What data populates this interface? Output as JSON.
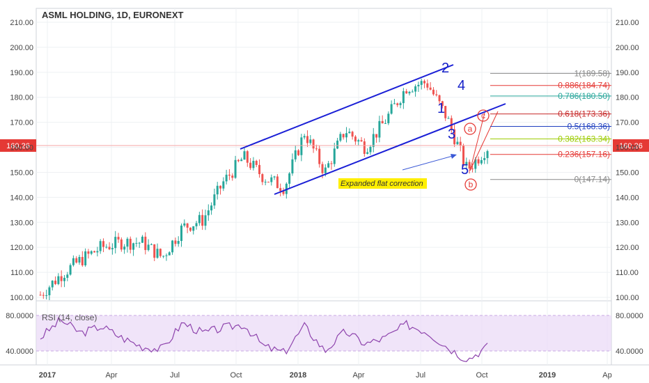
{
  "chart_data": [
    {
      "type": "candlestick",
      "title": "ASML HOLDING, 1D, EURONEXT",
      "x_ticks": [
        "2017",
        "Apr",
        "Jul",
        "Oct",
        "2018",
        "Apr",
        "Jul",
        "Oct",
        "2019",
        "Ap"
      ],
      "y_ticks": [
        "100.00",
        "110.00",
        "120.00",
        "130.00",
        "140.00",
        "150.00",
        "160.00",
        "170.00",
        "180.00",
        "190.00",
        "200.00",
        "210.00"
      ],
      "ylim": [
        98,
        215
      ],
      "last_price": "160.26",
      "series": [
        {
          "x": [
            "2016-12",
            "2017-01",
            "2017-02",
            "2017-03",
            "2017-04",
            "2017-05",
            "2017-06",
            "2017-07",
            "2017-08",
            "2017-09",
            "2017-10",
            "2017-11",
            "2017-12",
            "2018-01",
            "2018-02",
            "2018-03",
            "2018-04",
            "2018-05",
            "2018-06",
            "2018-07",
            "2018-08",
            "2018-09",
            "2018-10"
          ],
          "values": [
            101,
            109,
            115,
            120,
            122,
            122,
            116,
            128,
            131,
            146,
            156,
            148,
            144,
            166,
            150,
            167,
            160,
            171,
            184,
            186,
            172,
            151,
            160
          ]
        }
      ],
      "fib_levels": [
        {
          "label": "1(189.58)",
          "value": 189.58,
          "color": "#888888"
        },
        {
          "label": "0.886(184.74)",
          "value": 184.74,
          "color": "#e53935"
        },
        {
          "label": "0.786(180.50)",
          "value": 180.5,
          "color": "#26a69a"
        },
        {
          "label": "0.618(173.36)",
          "value": 173.36,
          "color": "#c62828"
        },
        {
          "label": "0.5(168.36)",
          "value": 168.36,
          "color": "#1e3fbf"
        },
        {
          "label": "0.382(163.34)",
          "value": 163.34,
          "color": "#9ccc00"
        },
        {
          "label": "0.236(157.16)",
          "value": 157.16,
          "color": "#e53935"
        },
        {
          "label": "0(147.14)",
          "value": 147.14,
          "color": "#888888"
        }
      ],
      "wave_labels": [
        "1",
        "2",
        "3",
        "4",
        "5"
      ],
      "correction_labels": [
        "a",
        "b",
        "c"
      ],
      "annotation": "Expanded flat correction"
    },
    {
      "type": "line",
      "title": "RSI (14, close)",
      "y_ticks": [
        "40.0000",
        "80.0000"
      ],
      "ylim": [
        25,
        85
      ],
      "series": [
        {
          "x": [
            "2016-12",
            "2017-01",
            "2017-02",
            "2017-03",
            "2017-04",
            "2017-05",
            "2017-06",
            "2017-07",
            "2017-08",
            "2017-09",
            "2017-10",
            "2017-11",
            "2017-12",
            "2018-01",
            "2018-02",
            "2018-03",
            "2018-04",
            "2018-05",
            "2018-06",
            "2018-07",
            "2018-08",
            "2018-09",
            "2018-10"
          ],
          "values": [
            55,
            75,
            60,
            68,
            55,
            45,
            42,
            72,
            60,
            66,
            70,
            45,
            38,
            68,
            40,
            62,
            48,
            55,
            70,
            62,
            45,
            30,
            45
          ]
        }
      ]
    }
  ]
}
